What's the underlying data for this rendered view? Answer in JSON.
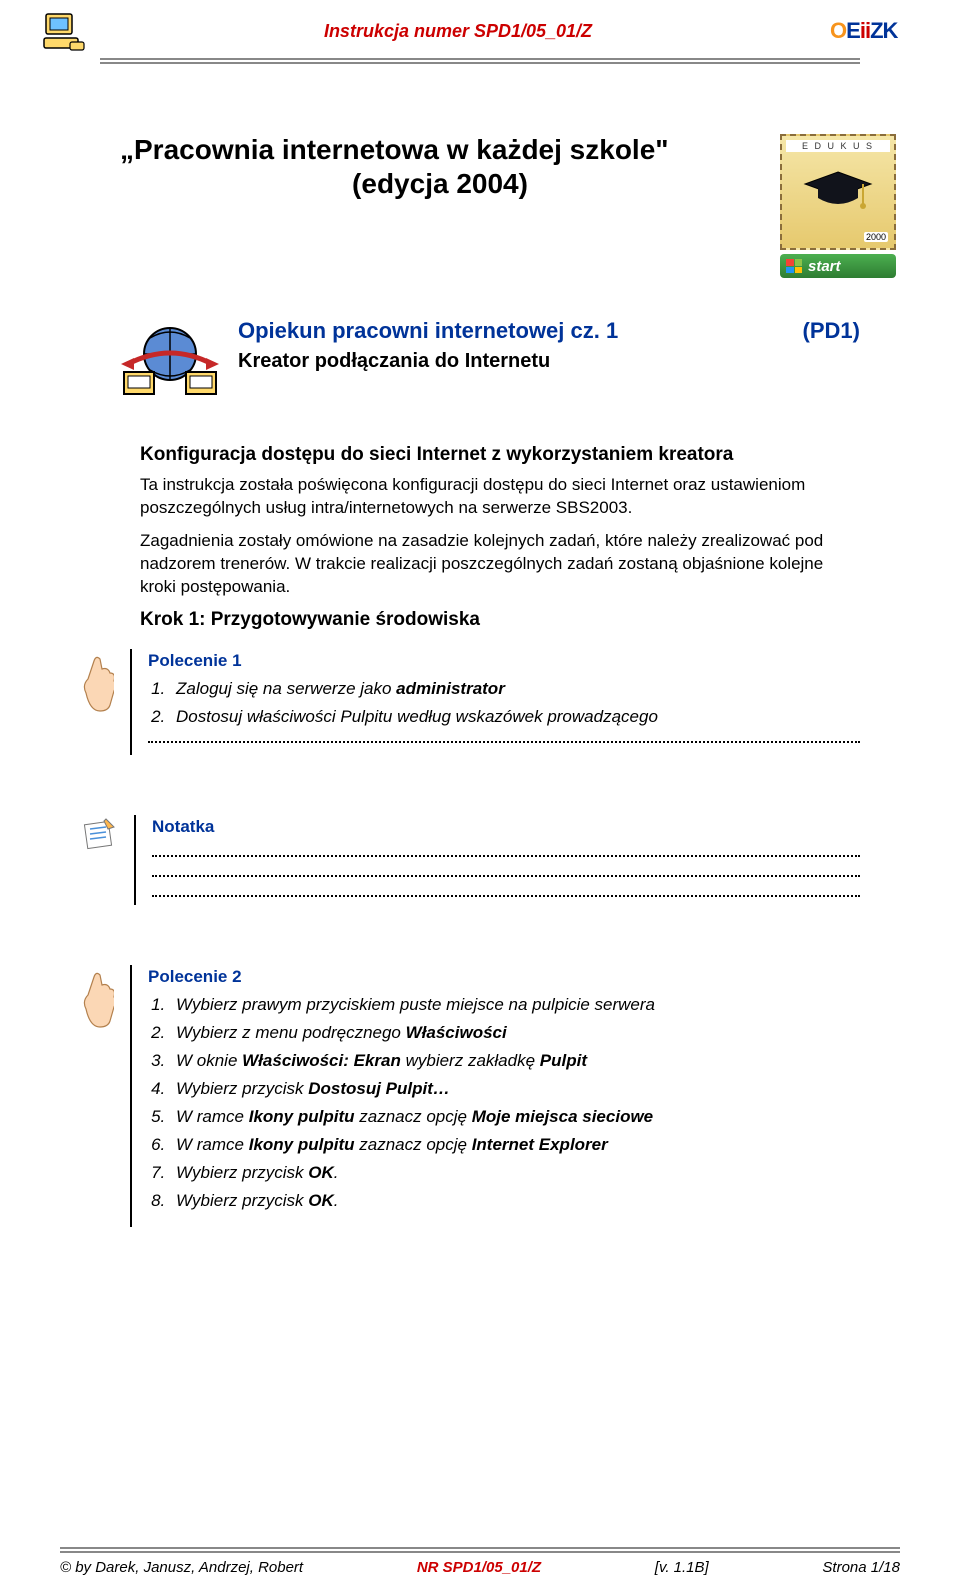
{
  "header": {
    "doc_id": "Instrukcja numer SPD1/05_01/Z",
    "logo_text": "OEiiZK",
    "colors": {
      "red": "#cc0000",
      "blue": "#003399",
      "orange": "#f7941d"
    }
  },
  "title": {
    "main": "„Pracownia internetowa w każdej szkole\"",
    "edition": "(edycja 2004)"
  },
  "stamp": {
    "label": "E D U K U S",
    "year": "2000",
    "start": "start"
  },
  "subtitle": {
    "line1_left": "Opiekun pracowni internetowej cz. 1",
    "line1_right": "(PD1)",
    "line2": "Kreator podłączania do Internetu"
  },
  "body": {
    "h3": "Konfiguracja dostępu do sieci Internet z wykorzystaniem kreatora",
    "p1": "Ta instrukcja została poświęcona konfiguracji dostępu do sieci Internet oraz ustawieniom poszczególnych usług intra/internetowych na serwerze SBS2003.",
    "p2": "Zagadnienia zostały omówione na zasadzie kolejnych zadań, które należy zrealizować pod nadzorem trenerów. W trakcie realizacji poszczególnych zadań zostaną objaśnione kolejne kroki postępowania.",
    "h4": "Krok 1: Przygotowywanie środowiska"
  },
  "polecenie1": {
    "label": "Polecenie 1",
    "items": [
      {
        "pre": "Zaloguj się na serwerze jako ",
        "b": "administrator",
        "post": ""
      },
      {
        "pre": "Dostosuj właściwości Pulpitu według wskazówek prowadzącego",
        "b": "",
        "post": ""
      }
    ]
  },
  "notatka": {
    "label": "Notatka"
  },
  "polecenie2": {
    "label": "Polecenie 2",
    "items": [
      {
        "pre": "Wybierz prawym przyciskiem puste miejsce na pulpicie serwera",
        "b": "",
        "post": ""
      },
      {
        "pre": "Wybierz z menu podręcznego ",
        "b": "Właściwości",
        "post": ""
      },
      {
        "pre": "W oknie ",
        "b": "Właściwości: Ekran",
        "post": " wybierz zakładkę ",
        "b2": "Pulpit"
      },
      {
        "pre": "Wybierz przycisk ",
        "b": "Dostosuj Pulpit…",
        "post": ""
      },
      {
        "pre": "W ramce ",
        "b": "Ikony pulpitu",
        "post": " zaznacz opcję ",
        "b2": "Moje miejsca sieciowe"
      },
      {
        "pre": "W ramce ",
        "b": "Ikony pulpitu",
        "post": " zaznacz opcję ",
        "b2": "Internet Explorer"
      },
      {
        "pre": "Wybierz przycisk ",
        "b": "OK",
        "post": "."
      },
      {
        "pre": "Wybierz przycisk ",
        "b": "OK",
        "post": "."
      }
    ]
  },
  "footer": {
    "left": "© by Darek, Janusz, Andrzej, Robert",
    "mid": "NR  SPD1/05_01/Z",
    "ver": "[v. 1.1B]",
    "right": "Strona 1/18"
  }
}
